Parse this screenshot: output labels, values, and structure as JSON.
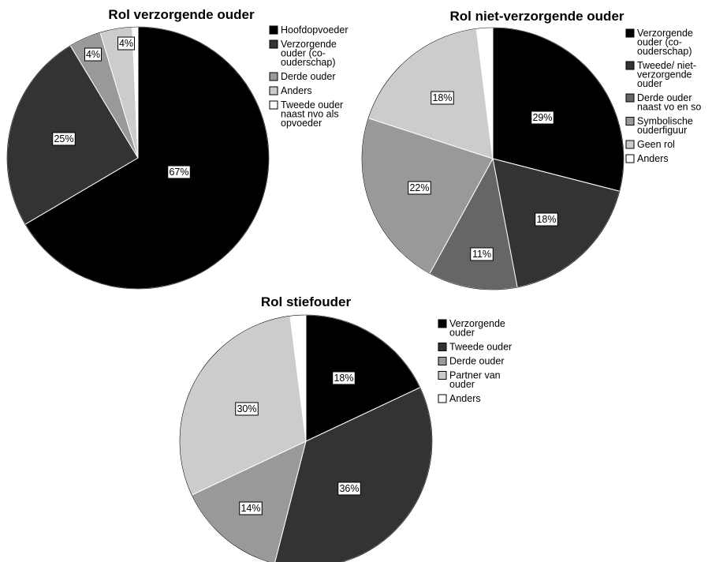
{
  "chart_data": [
    {
      "type": "pie",
      "title": "Rol verzorgende ouder",
      "slices": [
        {
          "label": "Hoofdopvoeder",
          "value": 67,
          "data_label": "67%",
          "color": "#000000"
        },
        {
          "label": "Verzorgende ouder (co-ouderschap)",
          "value": 25,
          "data_label": "25%",
          "color": "#333333"
        },
        {
          "label": "Derde ouder",
          "value": 4,
          "data_label": "4%",
          "color": "#999999"
        },
        {
          "label": "Anders",
          "value": 4,
          "data_label": "4%",
          "color": "#cccccc"
        },
        {
          "label": "Tweede ouder naast nvo als opvoeder",
          "value": 0.7,
          "data_label": "",
          "color": "#ffffff"
        }
      ],
      "legend": [
        [
          "Hoofdopvoeder"
        ],
        [
          "Verzorgende",
          "ouder (co-",
          "ouderschap)"
        ],
        [
          "Derde ouder"
        ],
        [
          "Anders"
        ],
        [
          "Tweede ouder",
          "naast nvo als",
          "opvoeder"
        ]
      ],
      "legend_position": "right"
    },
    {
      "type": "pie",
      "title": "Rol niet-verzorgende ouder",
      "slices": [
        {
          "label": "Verzorgende ouder (co-ouderschap)",
          "value": 29,
          "data_label": "29%",
          "color": "#000000"
        },
        {
          "label": "Tweede/ niet-verzorgende ouder",
          "value": 18,
          "data_label": "18%",
          "color": "#333333"
        },
        {
          "label": "Derde ouder naast vo en so",
          "value": 11,
          "data_label": "11%",
          "color": "#666666"
        },
        {
          "label": "Symbolische ouderfiguur",
          "value": 22,
          "data_label": "22%",
          "color": "#999999"
        },
        {
          "label": "Geen rol",
          "value": 18,
          "data_label": "18%",
          "color": "#cccccc"
        },
        {
          "label": "Anders",
          "value": 2,
          "data_label": "",
          "color": "#ffffff"
        }
      ],
      "legend": [
        [
          "Verzorgende",
          "ouder (co-",
          "ouderschap)"
        ],
        [
          "Tweede/ niet-",
          "verzorgende",
          "ouder"
        ],
        [
          "Derde ouder",
          "naast vo en so"
        ],
        [
          "Symbolische",
          "ouderfiguur"
        ],
        [
          "Geen rol"
        ],
        [
          "Anders"
        ]
      ],
      "legend_position": "right"
    },
    {
      "type": "pie",
      "title": "Rol stiefouder",
      "slices": [
        {
          "label": "Verzorgende ouder",
          "value": 18,
          "data_label": "18%",
          "color": "#000000"
        },
        {
          "label": "Tweede ouder",
          "value": 36,
          "data_label": "36%",
          "color": "#333333"
        },
        {
          "label": "Derde ouder",
          "value": 14,
          "data_label": "14%",
          "color": "#999999"
        },
        {
          "label": "Partner van ouder",
          "value": 30,
          "data_label": "30%",
          "color": "#cccccc"
        },
        {
          "label": "Anders",
          "value": 2,
          "data_label": "",
          "color": "#ffffff"
        }
      ],
      "legend": [
        [
          "Verzorgende",
          "ouder"
        ],
        [
          "Tweede ouder"
        ],
        [
          "Derde ouder"
        ],
        [
          "Partner van",
          "ouder"
        ],
        [
          "Anders"
        ]
      ],
      "legend_position": "right"
    }
  ]
}
